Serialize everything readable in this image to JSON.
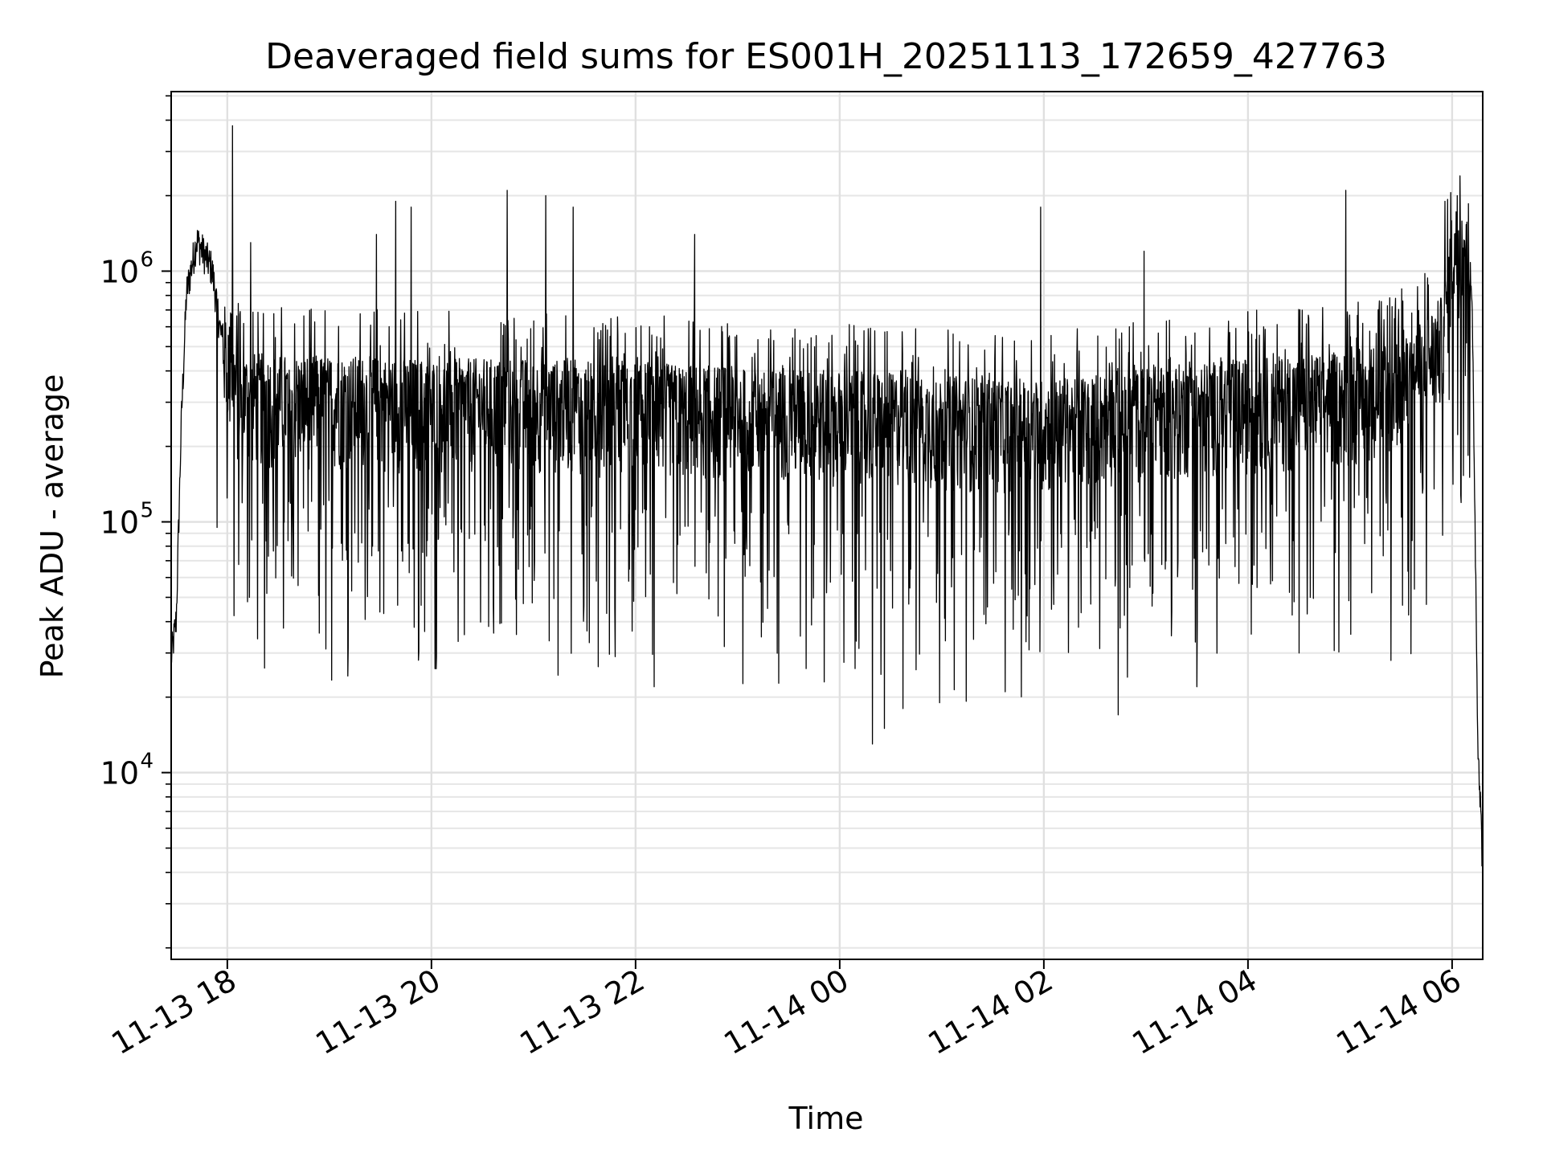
{
  "chart_data": {
    "type": "line",
    "title": "Deaveraged field sums for ES001H_20251113_172659_427763",
    "xlabel": "Time",
    "ylabel": "Peak ADU - average",
    "yscale": "log",
    "grid": true,
    "xlim_hours": [
      17.45,
      30.3
    ],
    "ylim": [
      1800,
      5200000
    ],
    "x_ticks": [
      {
        "label": "11-13 18",
        "hour": 18
      },
      {
        "label": "11-13 20",
        "hour": 20
      },
      {
        "label": "11-13 22",
        "hour": 22
      },
      {
        "label": "11-14 00",
        "hour": 24
      },
      {
        "label": "11-14 02",
        "hour": 26
      },
      {
        "label": "11-14 04",
        "hour": 28
      },
      {
        "label": "11-14 06",
        "hour": 30
      }
    ],
    "y_ticks": [
      {
        "base": "10",
        "exp": "4",
        "value": 10000
      },
      {
        "base": "10",
        "exp": "5",
        "value": 100000
      },
      {
        "base": "10",
        "exp": "6",
        "value": 1000000
      }
    ],
    "series": [
      {
        "name": "Peak ADU - average",
        "color": "#000000",
        "baseline": [
          [
            17.45,
            28000
          ],
          [
            17.5,
            40000
          ],
          [
            17.55,
            250000
          ],
          [
            17.6,
            800000
          ],
          [
            17.7,
            1300000
          ],
          [
            17.85,
            1000000
          ],
          [
            17.95,
            500000
          ],
          [
            18.1,
            300000
          ],
          [
            18.5,
            290000
          ],
          [
            19.0,
            290000
          ],
          [
            20.0,
            280000
          ],
          [
            21.0,
            280000
          ],
          [
            22.0,
            270000
          ],
          [
            23.0,
            260000
          ],
          [
            24.0,
            250000
          ],
          [
            25.0,
            240000
          ],
          [
            26.0,
            230000
          ],
          [
            27.0,
            260000
          ],
          [
            28.0,
            280000
          ],
          [
            29.0,
            300000
          ],
          [
            29.6,
            350000
          ],
          [
            29.9,
            500000
          ],
          [
            30.0,
            1100000
          ],
          [
            30.15,
            1300000
          ],
          [
            30.2,
            600000
          ],
          [
            30.25,
            15000
          ],
          [
            30.3,
            4000
          ]
        ],
        "spikes_high": [
          [
            18.05,
            3800000
          ],
          [
            18.23,
            1300000
          ],
          [
            19.46,
            1400000
          ],
          [
            19.65,
            1900000
          ],
          [
            19.8,
            1800000
          ],
          [
            20.74,
            2100000
          ],
          [
            21.12,
            2000000
          ],
          [
            21.39,
            1800000
          ],
          [
            22.58,
            1400000
          ],
          [
            25.97,
            1800000
          ],
          [
            26.98,
            1200000
          ],
          [
            28.96,
            2100000
          ],
          [
            29.93,
            1900000
          ],
          [
            30.05,
            2000000
          ]
        ],
        "spikes_low": [
          [
            17.9,
            95000
          ],
          [
            18.2,
            48000
          ],
          [
            18.9,
            36000
          ],
          [
            19.83,
            38000
          ],
          [
            20.05,
            29000
          ],
          [
            21.8,
            29000
          ],
          [
            22.18,
            22000
          ],
          [
            23.67,
            26000
          ],
          [
            23.85,
            23000
          ],
          [
            24.15,
            26000
          ],
          [
            24.32,
            13000
          ],
          [
            24.44,
            15000
          ],
          [
            24.62,
            18000
          ],
          [
            24.98,
            19000
          ],
          [
            25.62,
            21000
          ],
          [
            26.73,
            17000
          ],
          [
            26.82,
            24000
          ],
          [
            27.5,
            22000
          ],
          [
            28.5,
            30000
          ],
          [
            29.4,
            28000
          ]
        ]
      }
    ]
  }
}
